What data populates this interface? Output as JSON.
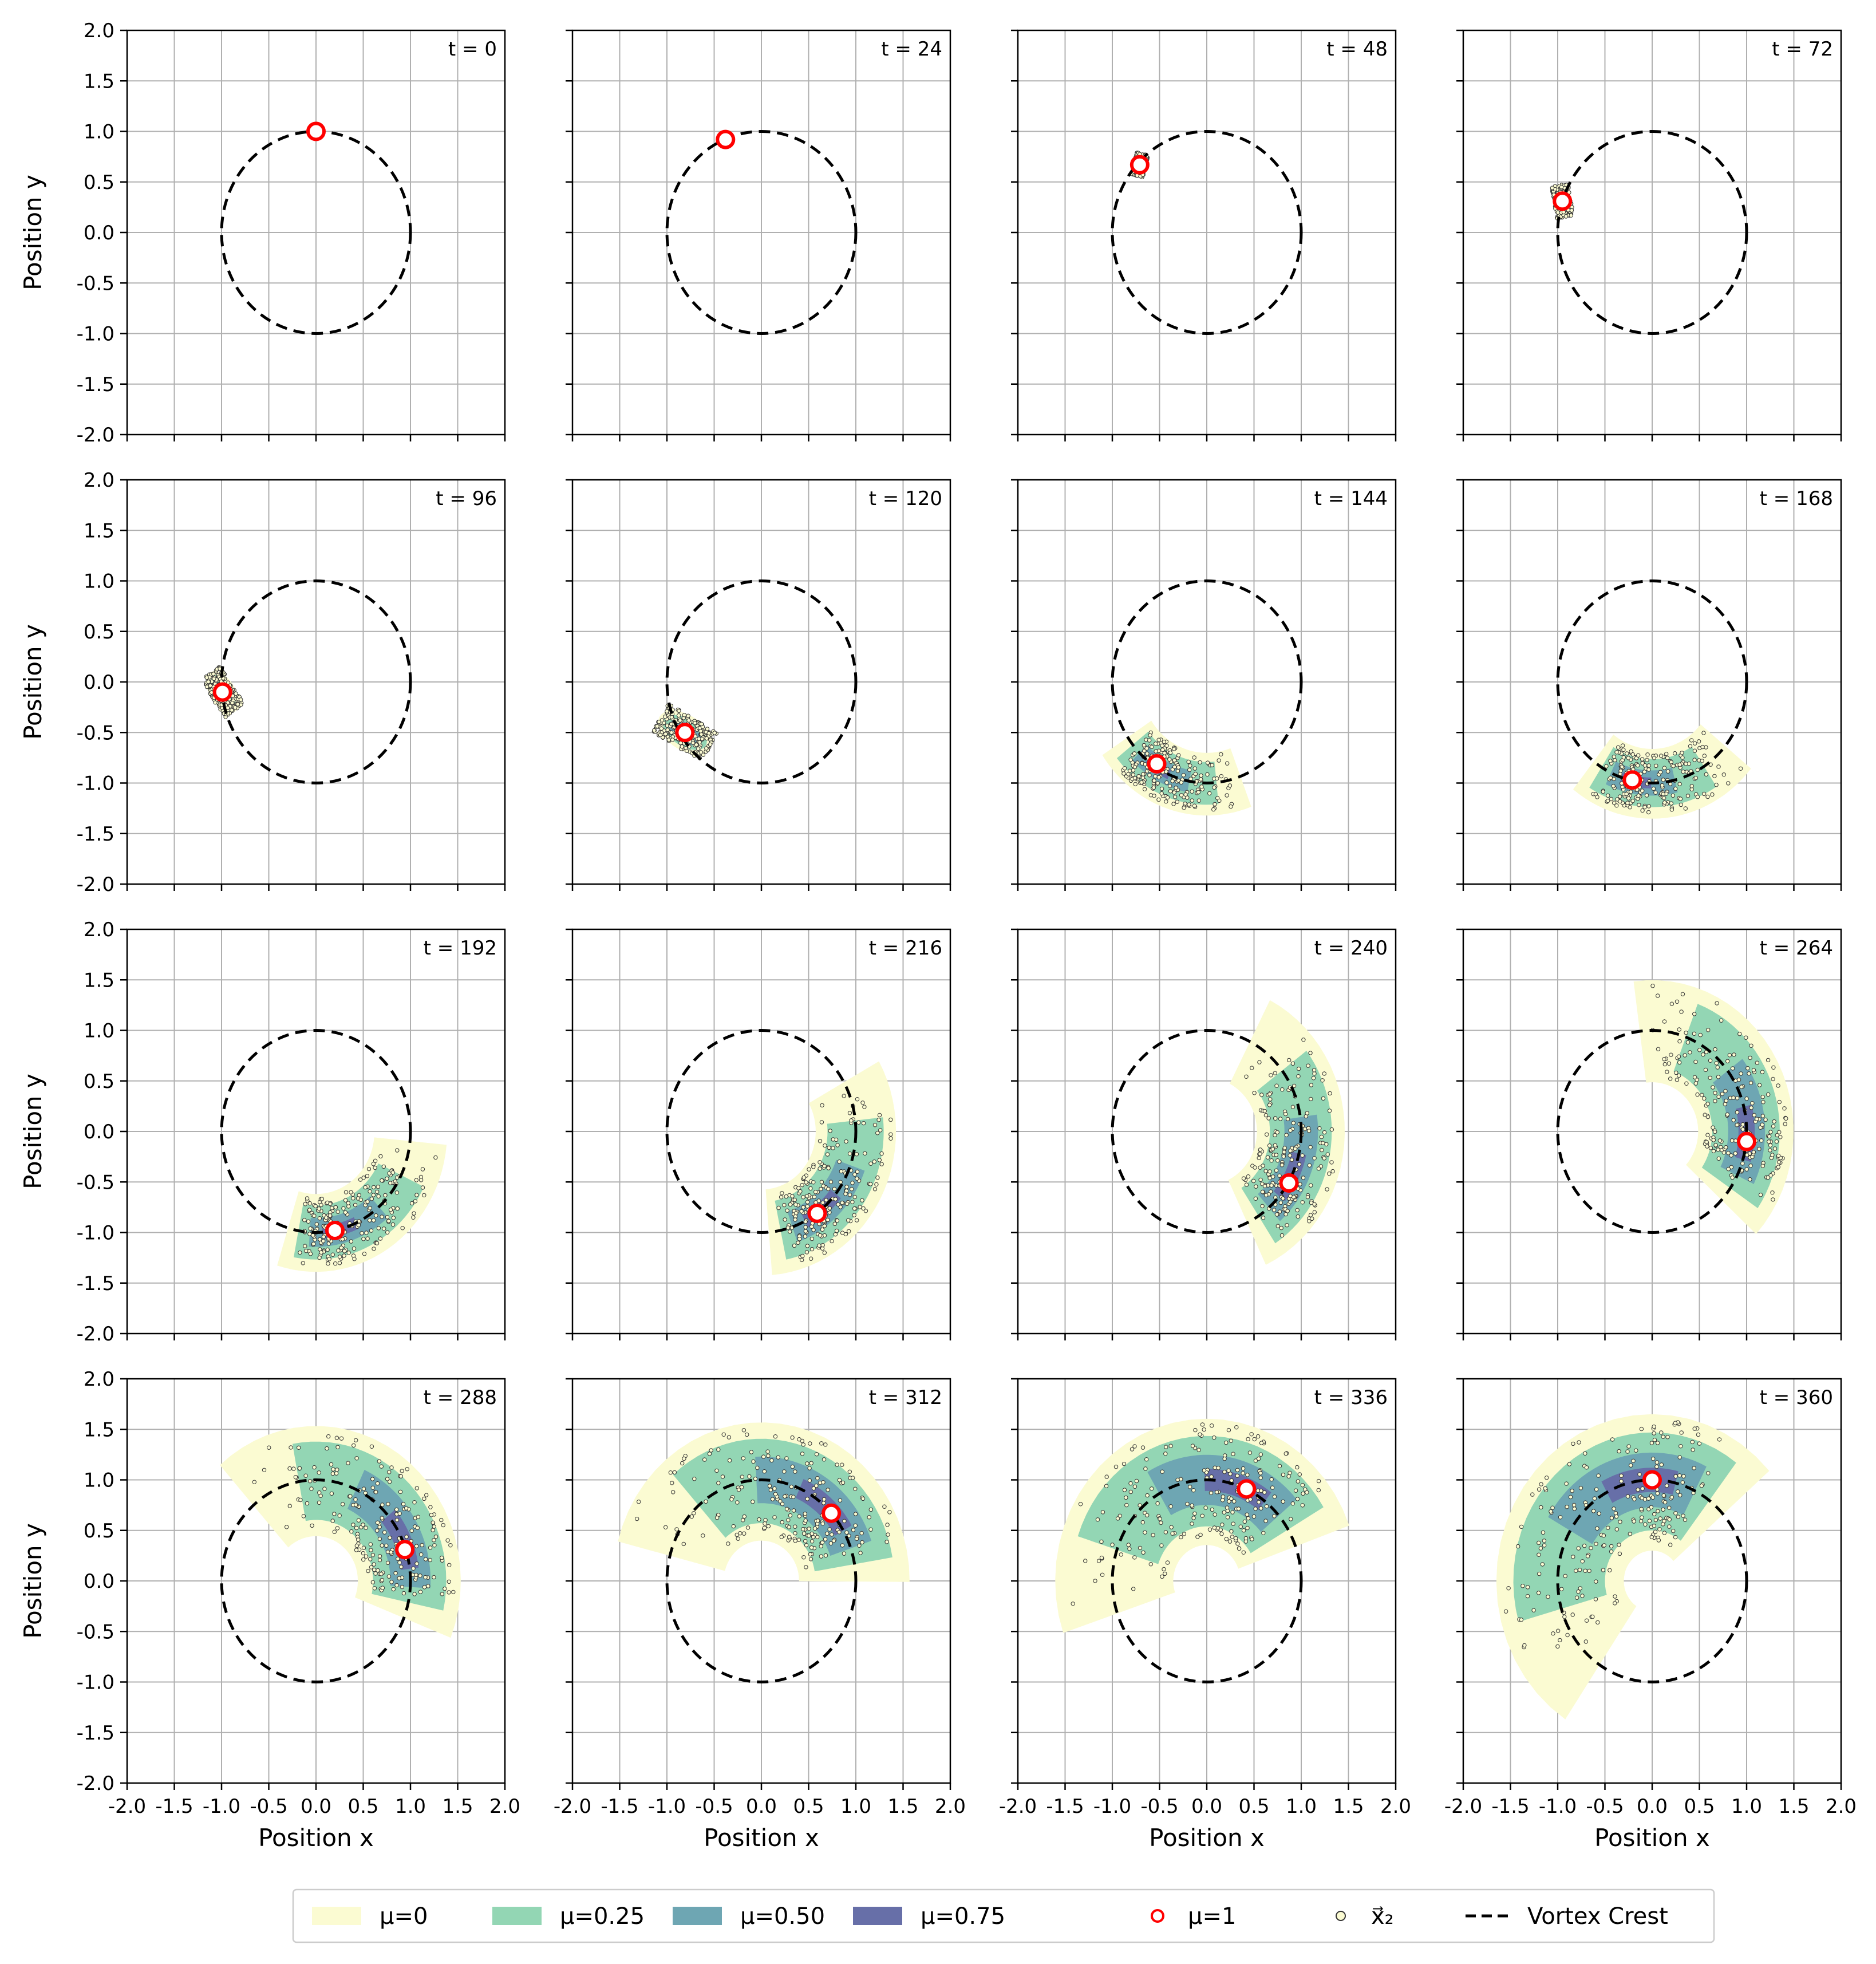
{
  "chart_data": {
    "type": "scatter",
    "layout": "4x4 grid of panels",
    "xlabel": "Position x",
    "ylabel": "Position y",
    "xlim": [
      -2.0,
      2.0
    ],
    "ylim": [
      -2.0,
      2.0
    ],
    "grid": true,
    "ticks": [
      "-2.0",
      "-1.5",
      "-1.0",
      "-0.5",
      "0.0",
      "0.5",
      "1.0",
      "1.5",
      "2.0"
    ],
    "tick_values": [
      -2.0,
      -1.5,
      -1.0,
      -0.5,
      0.0,
      0.5,
      1.0,
      1.5,
      2.0
    ],
    "vortex_crest": {
      "center": [
        0,
        0
      ],
      "radius": 1.0
    },
    "legend_placement": "bottom-center",
    "colors": {
      "mu0": "#fbfbd2",
      "mu025": "#93d6b4",
      "mu050": "#6ea6b3",
      "mu075": "#676fa8",
      "mu1": "#ff0000",
      "x2_edge": "#333333",
      "x2_fill": "#fbfbd2",
      "crest": "#000000",
      "grid": "#b0b0b0"
    },
    "legend": [
      {
        "key": "mu0",
        "label": "μ=0"
      },
      {
        "key": "mu025",
        "label": "μ=0.25"
      },
      {
        "key": "mu050",
        "label": "μ=0.50"
      },
      {
        "key": "mu075",
        "label": "μ=0.75"
      },
      {
        "key": "mu1",
        "label": "μ=1"
      },
      {
        "key": "x2",
        "label": "x⃗₂"
      },
      {
        "key": "crest",
        "label": "Vortex Crest"
      }
    ],
    "panels": [
      {
        "t_label": "t = 0",
        "center": [
          0.0,
          1.0
        ],
        "spread": 0.0
      },
      {
        "t_label": "t = 24",
        "center": [
          -0.38,
          0.92
        ],
        "spread": 0.01
      },
      {
        "t_label": "t = 48",
        "center": [
          -0.71,
          0.67
        ],
        "spread": 0.05
      },
      {
        "t_label": "t = 72",
        "center": [
          -0.95,
          0.31
        ],
        "spread": 0.09
      },
      {
        "t_label": "t = 96",
        "center": [
          -0.99,
          -0.1
        ],
        "spread": 0.14
      },
      {
        "t_label": "t = 120",
        "center": [
          -0.81,
          -0.5
        ],
        "spread": 0.2
      },
      {
        "t_label": "t = 144",
        "center": [
          -0.53,
          -0.81
        ],
        "spread": 0.27
      },
      {
        "t_label": "t = 168",
        "center": [
          -0.21,
          -0.97
        ],
        "spread": 0.34
      },
      {
        "t_label": "t = 192",
        "center": [
          0.2,
          -0.98
        ],
        "spread": 0.42
      },
      {
        "t_label": "t = 216",
        "center": [
          0.59,
          -0.81
        ],
        "spread": 0.5
      },
      {
        "t_label": "t = 240",
        "center": [
          0.87,
          -0.51
        ],
        "spread": 0.58
      },
      {
        "t_label": "t = 264",
        "center": [
          1.0,
          -0.1
        ],
        "spread": 0.66
      },
      {
        "t_label": "t = 288",
        "center": [
          0.94,
          0.31
        ],
        "spread": 0.74
      },
      {
        "t_label": "t = 312",
        "center": [
          0.74,
          0.67
        ],
        "spread": 0.82
      },
      {
        "t_label": "t = 336",
        "center": [
          0.42,
          0.91
        ],
        "spread": 0.9
      },
      {
        "t_label": "t = 360",
        "center": [
          0.0,
          1.0
        ],
        "spread": 1.0
      }
    ]
  }
}
